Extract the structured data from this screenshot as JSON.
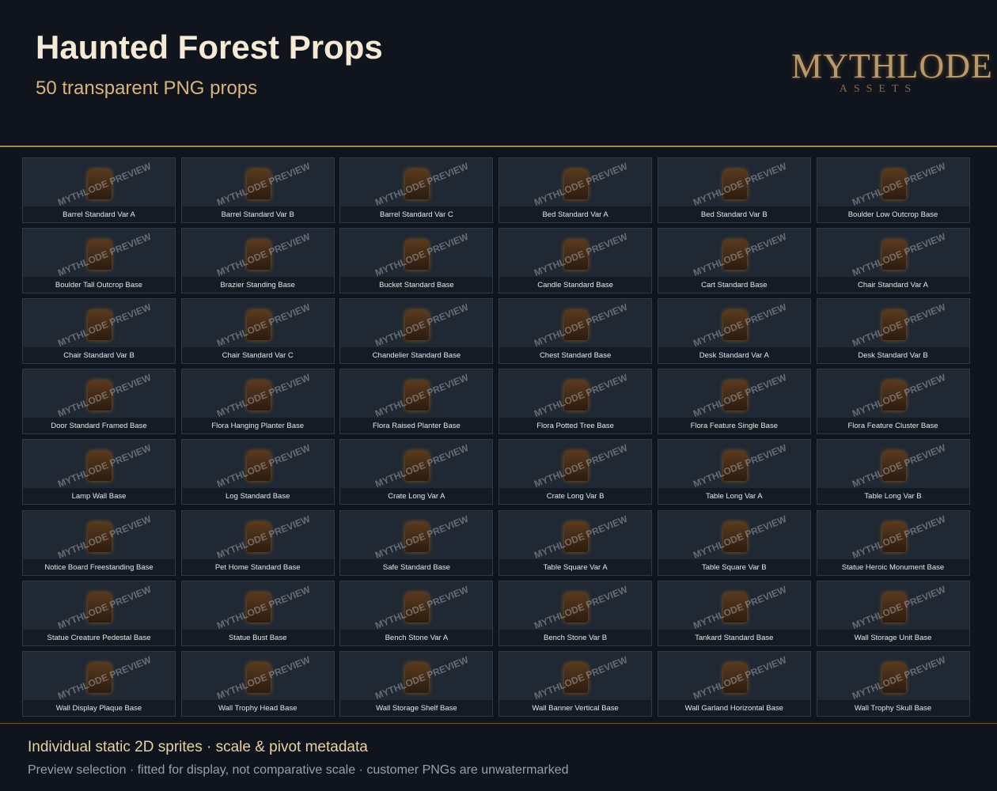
{
  "header": {
    "title": "Haunted Forest Props",
    "subtitle": "50 transparent PNG props",
    "logo": {
      "name": "MYTHLODE",
      "tagline": "ASSETS"
    }
  },
  "watermark": "MYTHLODE PREVIEW",
  "items": [
    "Barrel Standard Var A",
    "Barrel Standard Var B",
    "Barrel Standard Var C",
    "Bed Standard Var A",
    "Bed Standard Var B",
    "Boulder Low Outcrop Base",
    "Boulder Tall Outcrop Base",
    "Brazier Standing Base",
    "Bucket Standard Base",
    "Candle Standard Base",
    "Cart Standard Base",
    "Chair Standard Var A",
    "Chair Standard Var B",
    "Chair Standard Var C",
    "Chandelier Standard Base",
    "Chest Standard Base",
    "Desk Standard Var A",
    "Desk Standard Var B",
    "Door Standard Framed Base",
    "Flora Hanging Planter Base",
    "Flora Raised Planter Base",
    "Flora Potted Tree Base",
    "Flora Feature Single Base",
    "Flora Feature Cluster Base",
    "Lamp Wall Base",
    "Log Standard Base",
    "Crate Long Var A",
    "Crate Long Var B",
    "Table Long Var A",
    "Table Long Var B",
    "Notice Board Freestanding Base",
    "Pet Home Standard Base",
    "Safe Standard Base",
    "Table Square Var A",
    "Table Square Var B",
    "Statue Heroic Monument Base",
    "Statue Creature Pedestal Base",
    "Statue Bust Base",
    "Bench Stone Var A",
    "Bench Stone Var B",
    "Tankard Standard Base",
    "Wall Storage Unit Base",
    "Wall Display Plaque Base",
    "Wall Trophy Head Base",
    "Wall Storage Shelf Base",
    "Wall Banner Vertical Base",
    "Wall Garland Horizontal Base",
    "Wall Trophy Skull Base"
  ],
  "footer": {
    "line1": "Individual static 2D sprites · scale & pivot metadata",
    "line2": "Preview selection · fitted for display, not comparative scale · customer PNGs are unwatermarked"
  }
}
